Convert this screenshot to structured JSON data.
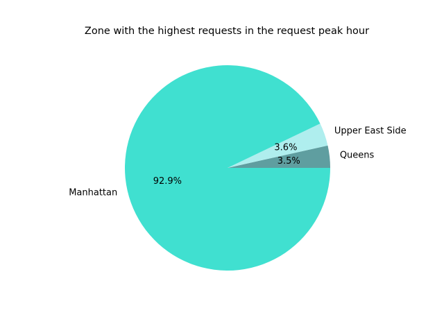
{
  "chart_data": {
    "type": "pie",
    "title": "Zone with the highest requests in the request peak hour",
    "slices": [
      {
        "label": "Queens",
        "value": 3.5,
        "pct_label": "3.5%",
        "color": "#5f9ea0"
      },
      {
        "label": "Upper East Side",
        "value": 3.6,
        "pct_label": "3.6%",
        "color": "#afeeee"
      },
      {
        "label": "Manhattan",
        "value": 92.9,
        "pct_label": "92.9%",
        "color": "#40e0d0"
      }
    ],
    "start_angle_deg": 0,
    "direction": "counterclockwise"
  }
}
